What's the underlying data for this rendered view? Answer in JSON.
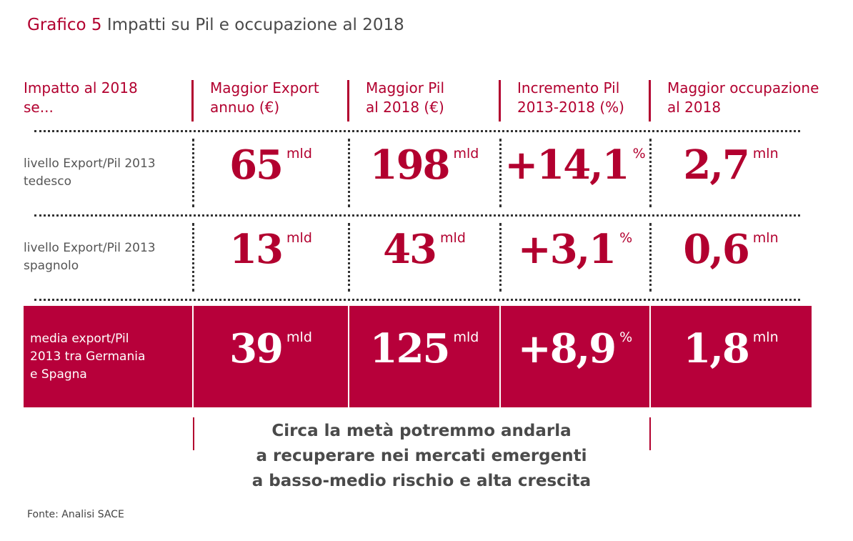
{
  "title": {
    "prefix": "Grafico 5",
    "text": "Impatti su Pil e occupazione al 2018"
  },
  "table": {
    "columns": [
      {
        "lines": [
          "Impatto al 2018",
          "se..."
        ]
      },
      {
        "lines": [
          "Maggior Export",
          "annuo (€)"
        ]
      },
      {
        "lines": [
          "Maggior Pil",
          "al 2018 (€)"
        ]
      },
      {
        "lines": [
          "Incremento Pil",
          "2013-2018 (%)"
        ]
      },
      {
        "lines": [
          "Maggior occupazione",
          "al 2018"
        ]
      }
    ],
    "rows": [
      {
        "label": [
          "livello Export/Pil 2013",
          "tedesco"
        ],
        "cells": [
          {
            "value": "65",
            "unit": "mld"
          },
          {
            "value": "198",
            "unit": "mld"
          },
          {
            "value": "+14,1",
            "unit": "%"
          },
          {
            "value": "2,7",
            "unit": "mln"
          }
        ]
      },
      {
        "label": [
          "livello Export/Pil 2013",
          "spagnolo"
        ],
        "cells": [
          {
            "value": "13",
            "unit": "mld"
          },
          {
            "value": "43",
            "unit": "mld"
          },
          {
            "value": "+3,1",
            "unit": "%"
          },
          {
            "value": "0,6",
            "unit": "mln"
          }
        ]
      },
      {
        "label": [
          "media export/Pil",
          "2013 tra Germania",
          "e Spagna"
        ],
        "cells": [
          {
            "value": "39",
            "unit": "mld"
          },
          {
            "value": "125",
            "unit": "mld"
          },
          {
            "value": "+8,9",
            "unit": "%"
          },
          {
            "value": "1,8",
            "unit": "mln"
          }
        ]
      }
    ]
  },
  "note": [
    "Circa la metà potremmo andarla",
    "a recuperare nei mercati emergenti",
    "a basso-medio rischio e alta crescita"
  ],
  "source": "Fonte: Analisi SACE"
}
